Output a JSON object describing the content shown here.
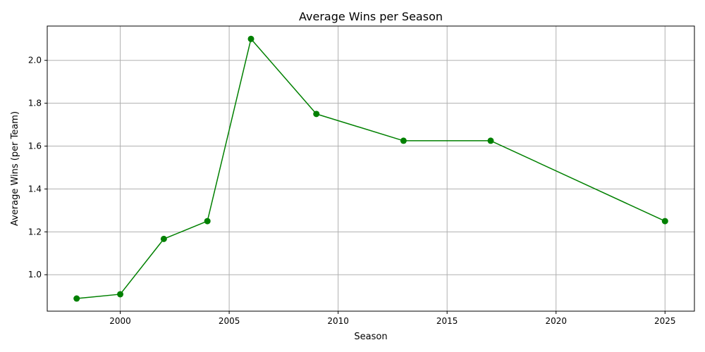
{
  "chart_data": {
    "type": "line",
    "title": "Average Wins per Season",
    "xlabel": "Season",
    "ylabel": "Average Wins (per Team)",
    "x": [
      1998,
      2000,
      2002,
      2004,
      2006,
      2009,
      2013,
      2017,
      2025
    ],
    "series": [
      {
        "values": [
          0.889,
          0.909,
          1.167,
          1.25,
          2.1,
          1.75,
          1.625,
          1.625,
          1.25
        ],
        "color": "#008000",
        "marker": "circle"
      }
    ],
    "xlim": [
      1996.65,
      2026.35
    ],
    "ylim": [
      0.83,
      2.16
    ],
    "xticks": [
      2000,
      2005,
      2010,
      2015,
      2020,
      2025
    ],
    "yticks": [
      1.0,
      1.2,
      1.4,
      1.6,
      1.8,
      2.0
    ],
    "grid": true,
    "legend": "none"
  }
}
